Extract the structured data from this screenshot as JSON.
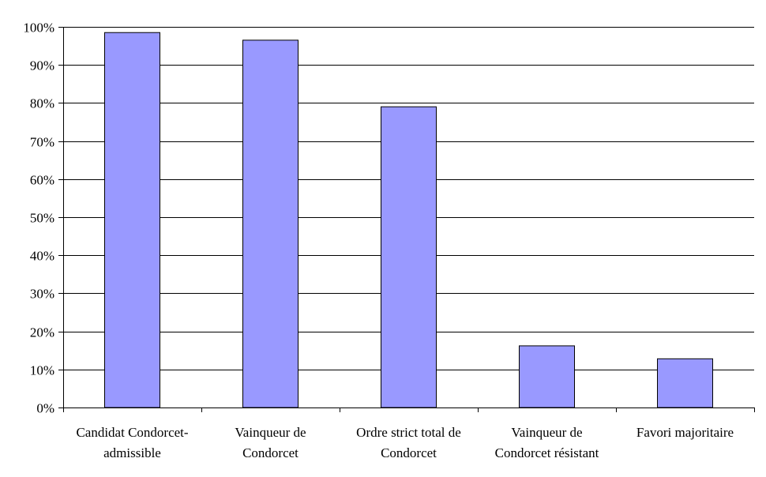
{
  "chart_data": {
    "type": "bar",
    "categories": [
      [
        "Candidat Condorcet-",
        "admissible"
      ],
      [
        "Vainqueur de",
        "Condorcet"
      ],
      [
        "Ordre strict total de",
        "Condorcet"
      ],
      [
        "Vainqueur de",
        "Condorcet résistant"
      ],
      [
        "Favori majoritaire"
      ]
    ],
    "values": [
      98.5,
      96.5,
      79,
      16.2,
      12.8
    ],
    "ylim": [
      0,
      100
    ],
    "yticks": [
      0,
      10,
      20,
      30,
      40,
      50,
      60,
      70,
      80,
      90,
      100
    ],
    "ytick_format": "{v}%",
    "grid": true,
    "legend": "none",
    "colors": {
      "bar_fill": "#9999ff",
      "bar_stroke": "#000000",
      "grid": "#000000",
      "axis": "#000000"
    }
  }
}
